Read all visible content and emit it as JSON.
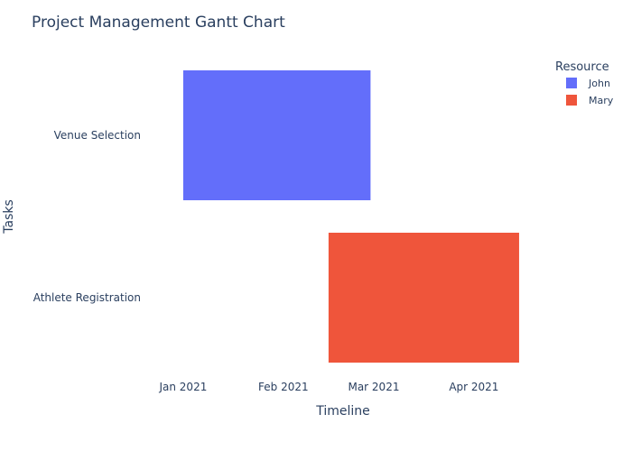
{
  "chart_data": {
    "type": "gantt",
    "title": "Project Management Gantt Chart",
    "xlabel": "Timeline",
    "ylabel": "Tasks",
    "x_ticks": [
      "Jan 2021",
      "Feb 2021",
      "Mar 2021",
      "Apr 2021"
    ],
    "x_tick_dates": [
      "2021-01-01",
      "2021-02-01",
      "2021-03-01",
      "2021-04-01"
    ],
    "categories": [
      "Venue Selection",
      "Athlete Registration"
    ],
    "tasks": [
      {
        "task": "Venue Selection",
        "start": "2021-01-01",
        "end": "2021-02-28",
        "resource": "John"
      },
      {
        "task": "Athlete Registration",
        "start": "2021-02-15",
        "end": "2021-04-15",
        "resource": "Mary"
      }
    ],
    "legend": {
      "title": "Resource",
      "position": "top-right",
      "items": [
        {
          "name": "John",
          "color": "#636efa"
        },
        {
          "name": "Mary",
          "color": "#ef553b"
        }
      ]
    },
    "grid": false
  }
}
